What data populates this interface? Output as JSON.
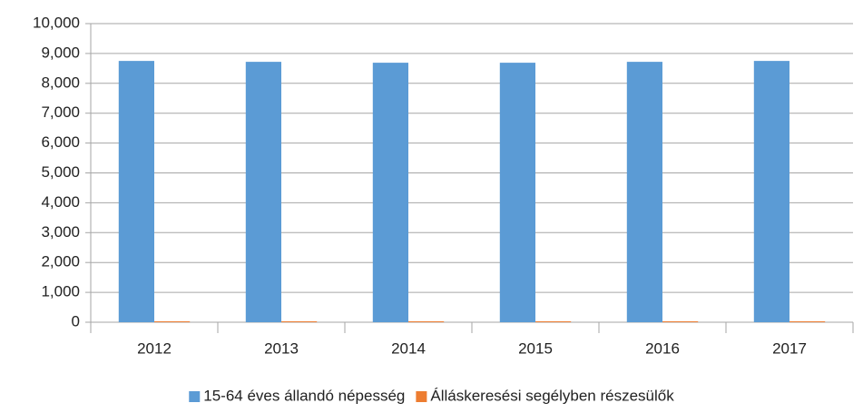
{
  "chart_data": {
    "type": "bar",
    "categories": [
      "2012",
      "2013",
      "2014",
      "2015",
      "2016",
      "2017"
    ],
    "series": [
      {
        "name": "15-64 éves állandó népesség",
        "color": "#5b9bd5",
        "values": [
          8750,
          8720,
          8690,
          8690,
          8720,
          8750
        ]
      },
      {
        "name": "Álláskeresési segélyben részesülők",
        "color": "#ed7d31",
        "values": [
          30,
          30,
          30,
          30,
          30,
          30
        ]
      }
    ],
    "ylim": [
      0,
      10000
    ],
    "yticks": [
      0,
      {
        "value": 1000,
        "label": "1,000"
      },
      {
        "value": 2000,
        "label": "2,000"
      },
      {
        "value": 3000,
        "label": "3,000"
      },
      {
        "value": 4000,
        "label": "4,000"
      },
      {
        "value": 5000,
        "label": "5,000"
      },
      {
        "value": 6000,
        "label": "6,000"
      },
      {
        "value": 7000,
        "label": "7,000"
      },
      {
        "value": 8000,
        "label": "8,000"
      },
      {
        "value": 9000,
        "label": "9,000"
      },
      {
        "value": 10000,
        "label": "10,000"
      }
    ],
    "grid": true,
    "legend": "bottom"
  }
}
